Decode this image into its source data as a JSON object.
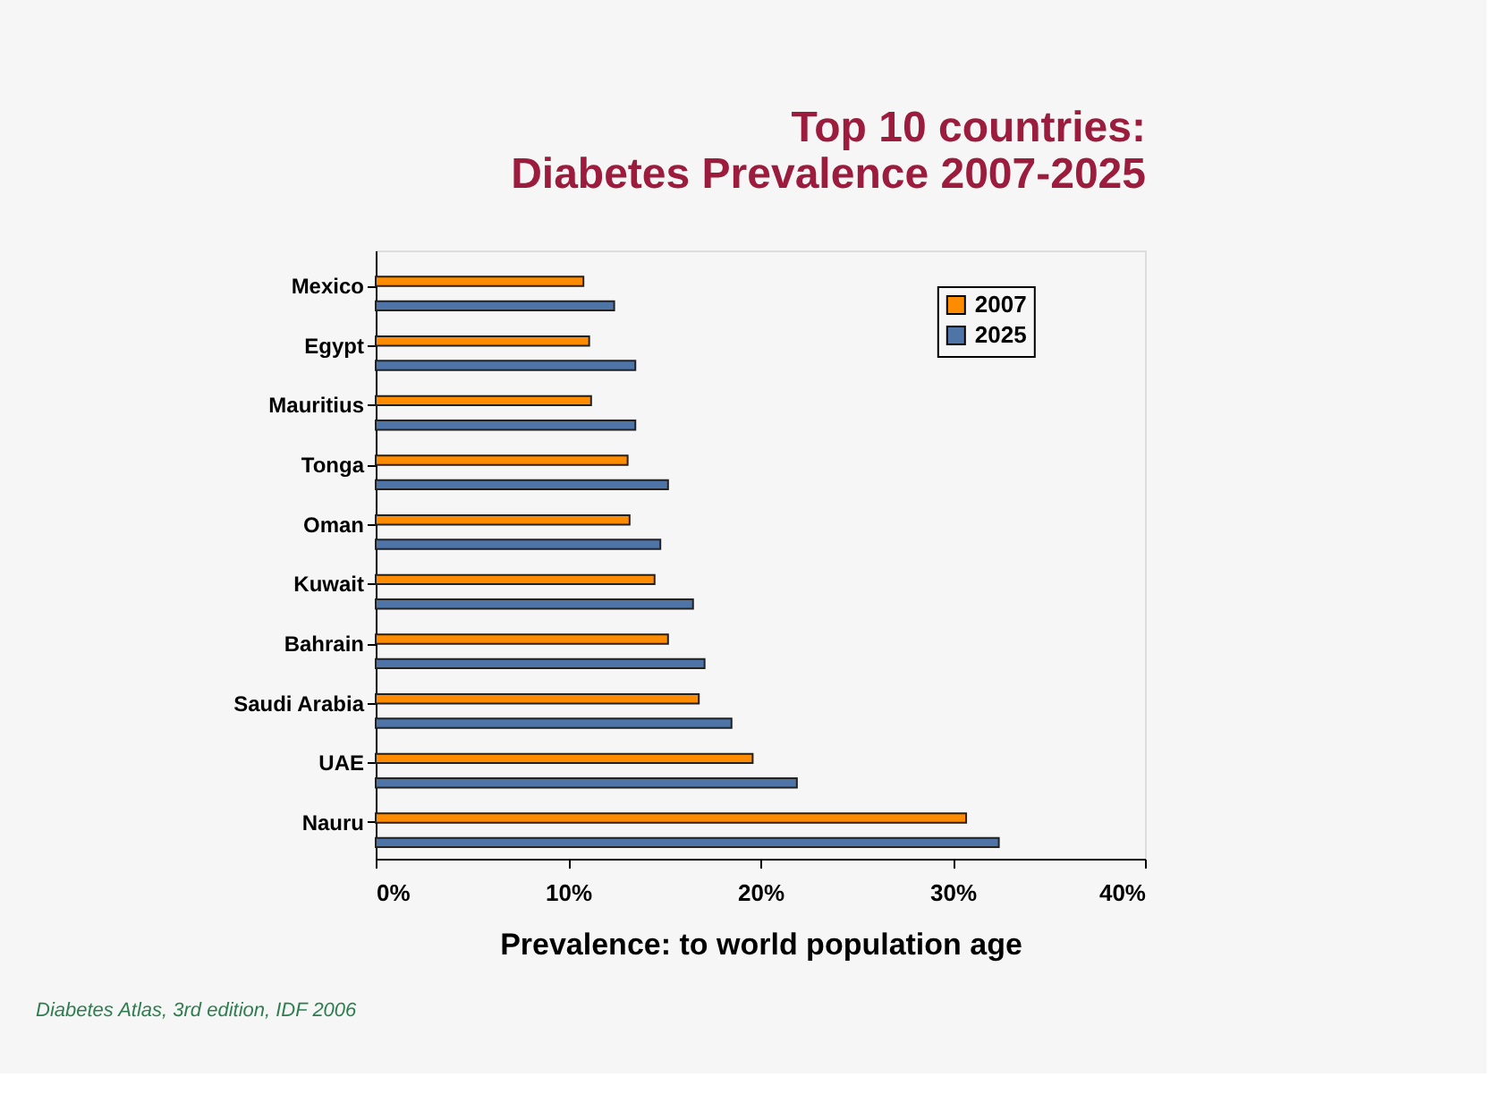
{
  "chart_data": {
    "type": "bar",
    "orientation": "horizontal",
    "title": "Top 10 countries:\nDiabetes Prevalence 2007-2025",
    "xlabel": "Prevalence: to world population age",
    "categories": [
      "Mexico",
      "Egypt",
      "Mauritius",
      "Tonga",
      "Oman",
      "Kuwait",
      "Bahrain",
      "Saudi Arabia",
      "UAE",
      "Nauru"
    ],
    "series": [
      {
        "name": "2007",
        "color": "#ff8c00",
        "values": [
          10.8,
          11.1,
          11.2,
          13.1,
          13.2,
          14.5,
          15.2,
          16.8,
          19.6,
          30.7
        ]
      },
      {
        "name": "2025",
        "color": "#4f74a8",
        "values": [
          12.4,
          13.5,
          13.5,
          15.2,
          14.8,
          16.5,
          17.1,
          18.5,
          21.9,
          32.4
        ]
      }
    ],
    "xlim": [
      0,
      40
    ],
    "xticks": [
      {
        "value": 0,
        "label": "0%"
      },
      {
        "value": 10,
        "label": "10%"
      },
      {
        "value": 20,
        "label": "20%"
      },
      {
        "value": 30,
        "label": "30%"
      },
      {
        "value": 40,
        "label": "40%"
      }
    ],
    "grid": false,
    "legend": "top right",
    "annotations": [
      "Diabetes Atlas, 3rd edition, IDF 2006"
    ]
  }
}
